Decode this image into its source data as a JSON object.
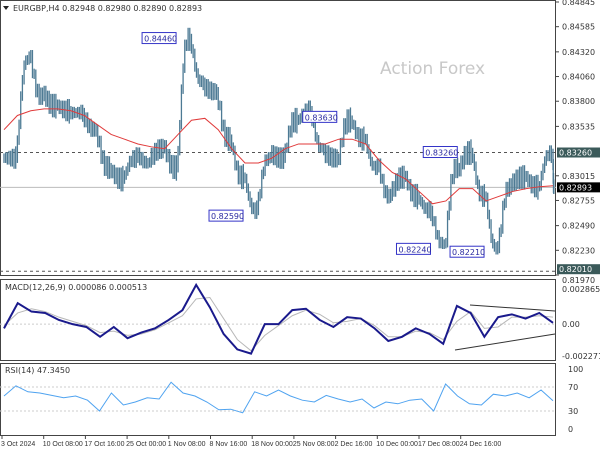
{
  "header": {
    "title": "EURGBP,H4 0.82948 0.82980 0.82890 0.82893"
  },
  "watermark": "Action Forex",
  "colors": {
    "candles": "#4d7a94",
    "ma": "#e03a3a",
    "macd": "#1a1a8c",
    "signal": "#b8b8b8",
    "rsi": "#4fa3f0",
    "label_border": "#3434c8"
  },
  "chart_data": [
    {
      "type": "line",
      "name": "price",
      "ylim": [
        0.8197,
        0.84845
      ],
      "yticks": [
        "0.84845",
        "0.84585",
        "0.84320",
        "0.84060",
        "0.83800",
        "0.83535",
        "0.83015",
        "0.82755",
        "0.82490",
        "0.82230",
        "0.81970"
      ],
      "closes": [
        0.832,
        0.8425,
        0.8385,
        0.8375,
        0.837,
        0.8368,
        0.835,
        0.831,
        0.8298,
        0.832,
        0.8315,
        0.833,
        0.831,
        0.8446,
        0.84,
        0.839,
        0.834,
        0.83,
        0.8265,
        0.832,
        0.832,
        0.836,
        0.837,
        0.833,
        0.832,
        0.836,
        0.834,
        0.831,
        0.828,
        0.83,
        0.828,
        0.8265,
        0.823,
        0.831,
        0.8326,
        0.828,
        0.8225,
        0.829,
        0.83,
        0.829,
        0.8325,
        0.82893
      ],
      "ma": [
        0.835,
        0.8365,
        0.837,
        0.8372,
        0.8372,
        0.837,
        0.8365,
        0.8355,
        0.8345,
        0.834,
        0.8335,
        0.8332,
        0.833,
        0.8345,
        0.836,
        0.8362,
        0.835,
        0.833,
        0.8315,
        0.8315,
        0.832,
        0.833,
        0.8335,
        0.8335,
        0.8335,
        0.834,
        0.834,
        0.8335,
        0.8318,
        0.8305,
        0.8298,
        0.8285,
        0.8272,
        0.8275,
        0.8288,
        0.8288,
        0.8275,
        0.828,
        0.8285,
        0.8288,
        0.829,
        0.8291
      ],
      "current": {
        "value": 0.82893,
        "label": "0.82893"
      },
      "levels": [
        {
          "value": 0.8326,
          "label": "0.83260"
        },
        {
          "value": 0.8201,
          "label": "0.82010"
        }
      ],
      "annotations": [
        {
          "label": "0.84460",
          "value": 0.8446,
          "bar": 13
        },
        {
          "label": "0.83630",
          "value": 0.8363,
          "bar": 25
        },
        {
          "label": "0.83260",
          "value": 0.8326,
          "bar": 34
        },
        {
          "label": "0.82590",
          "value": 0.8259,
          "bar": 18
        },
        {
          "label": "0.82240",
          "value": 0.8224,
          "bar": 32
        },
        {
          "label": "0.82210",
          "value": 0.8221,
          "bar": 36
        }
      ]
    },
    {
      "type": "line",
      "name": "MACD",
      "title": "MACD(12,26,9) 0.000086 0.000513",
      "ylim": [
        -0.002271,
        0.002865
      ],
      "yticks": [
        "0.002865",
        "0.00",
        "-0.002271"
      ],
      "macd": [
        -0.0003,
        0.0015,
        0.0009,
        0.0008,
        0.0003,
        0,
        -0.0002,
        -0.0009,
        -0.0002,
        -0.001,
        -0.0006,
        -0.0003,
        0.0003,
        0.001,
        0.0028,
        0.0012,
        -0.0007,
        -0.0018,
        -0.0021,
        0,
        0,
        0.001,
        0.0011,
        0.0003,
        -0.0002,
        0.0005,
        0.0004,
        -0.0003,
        -0.0012,
        -0.0009,
        -0.0003,
        -0.0007,
        -0.0014,
        0.0013,
        0.0008,
        -0.0009,
        0.0005,
        0.0007,
        0.0004,
        0.0008,
        0.0001
      ],
      "signal": [
        -0.0001,
        0.0008,
        0.0011,
        0.0009,
        0.0005,
        0.0002,
        -0.0001,
        -0.0006,
        -0.0005,
        -0.0008,
        -0.0007,
        -0.0004,
        0.0001,
        0.0006,
        0.0018,
        0.0019,
        0.0004,
        -0.0011,
        -0.0019,
        -0.0008,
        -0.0001,
        0.0006,
        0.001,
        0.0007,
        0.0001,
        0.0002,
        0.0004,
        -0.0001,
        -0.0009,
        -0.0009,
        -0.0005,
        -0.0006,
        -0.0011,
        0.0002,
        0.0009,
        -0.0003,
        -0.0002,
        0.0005,
        0.0005,
        0.0006,
        0.0005
      ]
    },
    {
      "type": "line",
      "name": "RSI",
      "title": "RSI(14) 47.3450",
      "ylim": [
        0,
        100
      ],
      "yticks": [
        "100",
        "70",
        "30",
        "0"
      ],
      "values": [
        55,
        72,
        62,
        60,
        56,
        52,
        55,
        48,
        30,
        60,
        40,
        45,
        52,
        50,
        78,
        60,
        55,
        45,
        32,
        33,
        27,
        62,
        55,
        65,
        55,
        48,
        45,
        56,
        50,
        45,
        50,
        35,
        45,
        42,
        48,
        50,
        30,
        75,
        55,
        42,
        40,
        58,
        55,
        60,
        52,
        65,
        47
      ]
    },
    {
      "type": "axis",
      "xticks": [
        "3 Oct 2024",
        "10 Oct 08:00",
        "17 Oct 16:00",
        "25 Oct 00:00",
        "1 Nov 08:00",
        "8 Nov 16:00",
        "18 Nov 00:00",
        "25 Nov 08:00",
        "2 Dec 16:00",
        "10 Dec 00:00",
        "17 Dec 08:00",
        "24 Dec 16:00"
      ]
    }
  ]
}
